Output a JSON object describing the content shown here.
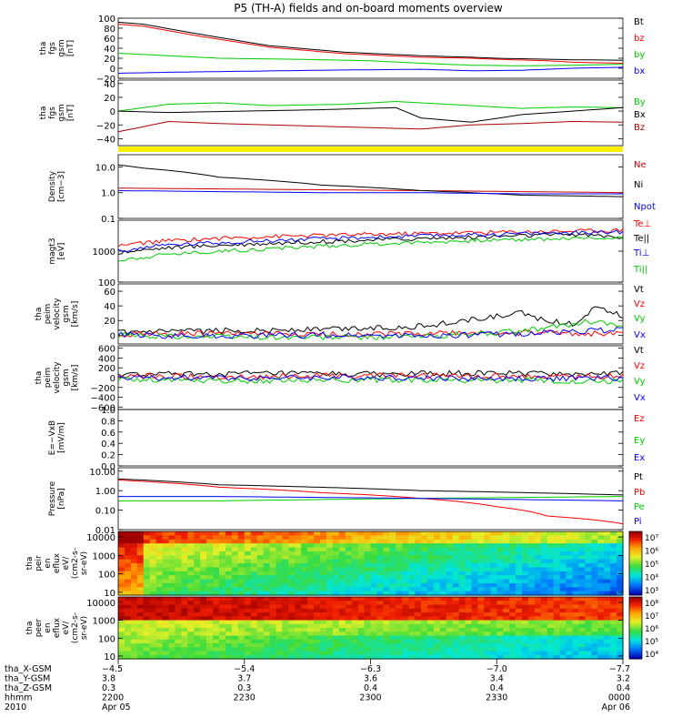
{
  "title": "P5 (TH-A) fields and on-board moments overview",
  "chart_data": [
    {
      "id": "fgs",
      "type": "line",
      "ylabel": [
        "tha",
        "fgs",
        "gsm",
        "[nT]"
      ],
      "yticks": [
        "100",
        "80",
        "60",
        "40",
        "20",
        "0",
        "−20"
      ],
      "ylim": [
        -20,
        100
      ],
      "scale": "linear",
      "series": [
        {
          "name": "Bt",
          "color": "#000000",
          "x": [
            0,
            0.05,
            0.15,
            0.3,
            0.45,
            0.6,
            0.7,
            0.75,
            0.85,
            0.9,
            1
          ],
          "y": [
            92,
            88,
            70,
            45,
            32,
            25,
            22,
            20,
            18,
            17,
            16
          ]
        },
        {
          "name": "bz",
          "color": "#ff0000",
          "x": [
            0,
            0.05,
            0.15,
            0.3,
            0.45,
            0.6,
            0.7,
            0.75,
            0.85,
            0.9,
            1
          ],
          "y": [
            88,
            84,
            66,
            42,
            29,
            22,
            20,
            18,
            15,
            12,
            10
          ]
        },
        {
          "name": "by",
          "color": "#00cc00",
          "x": [
            0,
            0.1,
            0.2,
            0.35,
            0.5,
            0.6,
            0.7,
            0.8,
            0.9,
            1
          ],
          "y": [
            30,
            25,
            20,
            18,
            15,
            10,
            6,
            5,
            6,
            8
          ]
        },
        {
          "name": "bx",
          "color": "#0000ff",
          "x": [
            0,
            0.1,
            0.25,
            0.4,
            0.5,
            0.6,
            0.7,
            0.8,
            0.9,
            1
          ],
          "y": [
            -10,
            -8,
            -6,
            -4,
            -3,
            -2,
            -5,
            -4,
            0,
            2
          ]
        }
      ]
    },
    {
      "id": "fgs2",
      "type": "line",
      "ylabel": [
        "tha",
        "fgs",
        "gsm",
        "[nT]"
      ],
      "yticks": [
        "40",
        "20",
        "0",
        "−20",
        "−40"
      ],
      "ylim": [
        -50,
        45
      ],
      "scale": "linear",
      "series": [
        {
          "name": "By",
          "color": "#00cc00",
          "x": [
            0,
            0.1,
            0.2,
            0.3,
            0.45,
            0.55,
            0.7,
            0.8,
            0.9,
            1
          ],
          "y": [
            0,
            10,
            12,
            8,
            10,
            14,
            8,
            4,
            6,
            5
          ]
        },
        {
          "name": "Bx",
          "color": "#000000",
          "x": [
            0,
            0.1,
            0.25,
            0.4,
            0.55,
            0.6,
            0.7,
            0.8,
            0.9,
            1
          ],
          "y": [
            0,
            -2,
            0,
            2,
            5,
            -10,
            -16,
            -5,
            0,
            5
          ]
        },
        {
          "name": "Bz",
          "color": "#aa0000",
          "x": [
            0,
            0.1,
            0.2,
            0.3,
            0.4,
            0.5,
            0.6,
            0.7,
            0.8,
            0.9,
            1
          ],
          "y": [
            -30,
            -15,
            -18,
            -20,
            -22,
            -24,
            -26,
            -20,
            -18,
            -15,
            -16
          ]
        }
      ]
    },
    {
      "id": "density",
      "type": "line",
      "ylabel": [
        "Density",
        "[cm−3]"
      ],
      "yticks": [
        "10.0",
        "1.0",
        "0.1"
      ],
      "ylim": [
        0.1,
        30
      ],
      "scale": "log",
      "series": [
        {
          "name": "Ne",
          "color": "#cc0000",
          "x": [
            0,
            0.2,
            0.4,
            0.6,
            0.8,
            1
          ],
          "y": [
            1.5,
            1.4,
            1.3,
            1.2,
            1.1,
            1.0
          ]
        },
        {
          "name": "Ni",
          "color": "#000000",
          "x": [
            0,
            0.05,
            0.2,
            0.4,
            0.6,
            0.8,
            1
          ],
          "y": [
            12,
            9,
            4,
            2,
            1.2,
            0.8,
            0.7
          ]
        },
        {
          "name": "Npot",
          "color": "#0000ff",
          "x": [
            0,
            0.2,
            0.4,
            0.6,
            0.8,
            1
          ],
          "y": [
            1.2,
            1.1,
            1.0,
            1.0,
            0.9,
            0.9
          ]
        }
      ]
    },
    {
      "id": "temp",
      "type": "line",
      "ylabel": [
        "magt3",
        "[eV]"
      ],
      "yticks": [
        "1000",
        "100"
      ],
      "ylim": [
        100,
        10000
      ],
      "scale": "log",
      "series": [
        {
          "name": "Te⊥",
          "color": "#ff0000",
          "x": [
            0,
            0.1,
            0.3,
            0.5,
            0.7,
            0.9,
            1
          ],
          "y": [
            1500,
            2200,
            3000,
            3500,
            4000,
            4500,
            4800
          ]
        },
        {
          "name": "Te||",
          "color": "#000000",
          "x": [
            0,
            0.1,
            0.3,
            0.5,
            0.7,
            0.9,
            1
          ],
          "y": [
            900,
            1300,
            1800,
            2300,
            2800,
            3500,
            2800
          ]
        },
        {
          "name": "Ti⊥",
          "color": "#0000ff",
          "x": [
            0,
            0.1,
            0.3,
            0.5,
            0.7,
            0.9,
            1
          ],
          "y": [
            1000,
            1600,
            2200,
            2800,
            3400,
            4000,
            4200
          ]
        },
        {
          "name": "Ti||",
          "color": "#00cc00",
          "x": [
            0,
            0.1,
            0.3,
            0.5,
            0.7,
            0.9,
            1
          ],
          "y": [
            500,
            800,
            1200,
            1700,
            2200,
            2600,
            2700
          ]
        }
      ]
    },
    {
      "id": "peim1",
      "type": "line",
      "ylabel": [
        "tha",
        "peim",
        "velocity",
        "gsm",
        "[km/s]"
      ],
      "yticks": [
        "60",
        "40",
        "20",
        "0"
      ],
      "ylim": [
        -12,
        70
      ],
      "scale": "linear",
      "series": [
        {
          "name": "Vt",
          "color": "#000000",
          "x": [
            0,
            0.2,
            0.4,
            0.6,
            0.8,
            0.85,
            0.9,
            0.95,
            1
          ],
          "y": [
            3,
            6,
            8,
            12,
            30,
            20,
            15,
            40,
            25
          ]
        },
        {
          "name": "Vz",
          "color": "#ff0000",
          "x": [
            0,
            0.2,
            0.4,
            0.6,
            0.8,
            1
          ],
          "y": [
            1,
            2,
            1,
            2,
            3,
            2
          ]
        },
        {
          "name": "Vy",
          "color": "#00cc00",
          "x": [
            0,
            0.2,
            0.4,
            0.6,
            0.8,
            0.95,
            1
          ],
          "y": [
            0,
            -2,
            -3,
            -2,
            5,
            20,
            10
          ]
        },
        {
          "name": "Vx",
          "color": "#0000ff",
          "x": [
            0,
            0.2,
            0.4,
            0.6,
            0.8,
            1
          ],
          "y": [
            0,
            -1,
            0,
            -1,
            2,
            8
          ]
        }
      ]
    },
    {
      "id": "peim2",
      "type": "line",
      "ylabel": [
        "tha",
        "peim",
        "velocity",
        "gsm",
        "[km/s]"
      ],
      "yticks": [
        "600",
        "400",
        "200",
        "0",
        "−200",
        "−400",
        "−600"
      ],
      "ylim": [
        -650,
        650
      ],
      "scale": "linear",
      "series": [
        {
          "name": "Vt",
          "color": "#000000",
          "x": [
            0,
            0.25,
            0.5,
            0.75,
            1
          ],
          "y": [
            60,
            80,
            70,
            90,
            80
          ]
        },
        {
          "name": "Vz",
          "color": "#ff0000",
          "x": [
            0,
            0.25,
            0.5,
            0.75,
            1
          ],
          "y": [
            30,
            20,
            40,
            30,
            30
          ]
        },
        {
          "name": "Vy",
          "color": "#00cc00",
          "x": [
            0,
            0.25,
            0.5,
            0.75,
            1
          ],
          "y": [
            -20,
            -60,
            -40,
            -60,
            -80
          ]
        },
        {
          "name": "Vx",
          "color": "#0000ff",
          "x": [
            0,
            0.25,
            0.5,
            0.75,
            1
          ],
          "y": [
            0,
            -10,
            0,
            -20,
            -10
          ]
        }
      ]
    },
    {
      "id": "efield",
      "type": "line",
      "ylabel": [
        "E=−VxB",
        "[mV/m]"
      ],
      "yticks": [
        "1.0",
        "0.8",
        "0.6",
        "0.4",
        "0.2",
        "0.0"
      ],
      "ylim": [
        0,
        1
      ],
      "scale": "linear",
      "series": [
        {
          "name": "Ez",
          "color": "#ff0000",
          "x": [],
          "y": []
        },
        {
          "name": "Ey",
          "color": "#00cc00",
          "x": [],
          "y": []
        },
        {
          "name": "Ex",
          "color": "#0000ff",
          "x": [],
          "y": []
        }
      ]
    },
    {
      "id": "pressure",
      "type": "line",
      "ylabel": [
        "Pressure",
        "[nPa]"
      ],
      "yticks": [
        "10.00",
        "1.00",
        "0.10",
        "0.01"
      ],
      "ylim": [
        0.01,
        15
      ],
      "scale": "log",
      "series": [
        {
          "name": "Pt",
          "color": "#000000",
          "x": [
            0,
            0.05,
            0.2,
            0.4,
            0.6,
            0.8,
            1
          ],
          "y": [
            4,
            3.5,
            2,
            1.5,
            1.0,
            0.8,
            0.6
          ]
        },
        {
          "name": "Pb",
          "color": "#ff0000",
          "x": [
            0,
            0.05,
            0.2,
            0.4,
            0.6,
            0.75,
            0.85,
            0.95,
            1
          ],
          "y": [
            3.5,
            3,
            1.5,
            0.8,
            0.4,
            0.15,
            0.05,
            0.03,
            0.02
          ]
        },
        {
          "name": "Pe",
          "color": "#00cc00",
          "x": [
            0,
            0.2,
            0.4,
            0.6,
            0.8,
            1
          ],
          "y": [
            0.3,
            0.3,
            0.35,
            0.4,
            0.45,
            0.5
          ]
        },
        {
          "name": "Pi",
          "color": "#0000ff",
          "x": [
            0,
            0.2,
            0.4,
            0.6,
            0.8,
            1
          ],
          "y": [
            0.5,
            0.5,
            0.45,
            0.4,
            0.35,
            0.3
          ]
        }
      ]
    },
    {
      "id": "peir",
      "type": "heatmap",
      "ylabel": [
        "tha",
        "peir",
        "en",
        "eflux",
        "eV/",
        "(cm2-s-",
        "sr-eV)"
      ],
      "yticks": [
        "10000",
        "1000",
        "100",
        "10"
      ],
      "ylim": [
        7,
        20000
      ],
      "scale": "log",
      "colorbar": {
        "ticks": [
          "10⁷",
          "10⁶",
          "10⁵",
          "10⁴",
          "10³"
        ]
      }
    },
    {
      "id": "peer",
      "type": "heatmap",
      "ylabel": [
        "tha",
        "peer",
        "en",
        "eflux",
        "eV/",
        "(cm2-s-",
        "sr-eV)"
      ],
      "yticks": [
        "10000",
        "1000",
        "100",
        "10"
      ],
      "ylim": [
        7,
        20000
      ],
      "scale": "log",
      "colorbar": {
        "ticks": [
          "10⁸",
          "10⁷",
          "10⁶",
          "10⁵",
          "10⁴"
        ]
      }
    }
  ],
  "footer": {
    "rows": [
      {
        "label": "tha_X-GSM",
        "values": [
          "−4.5",
          "−5.4",
          "−6.3",
          "−7.0",
          "−7.7"
        ]
      },
      {
        "label": "tha_Y-GSM",
        "values": [
          "3.8",
          "3.7",
          "3.6",
          "3.4",
          "3.2"
        ]
      },
      {
        "label": "tha_Z-GSM",
        "values": [
          "0.3",
          "0.3",
          "0.4",
          "0.4",
          "0.4"
        ]
      },
      {
        "label": "hhmm",
        "values": [
          "2200",
          "2230",
          "2300",
          "2330",
          "0000"
        ]
      },
      {
        "label": "2010",
        "values": [
          "Apr 05",
          "",
          "",
          "",
          "Apr 06"
        ]
      }
    ]
  }
}
